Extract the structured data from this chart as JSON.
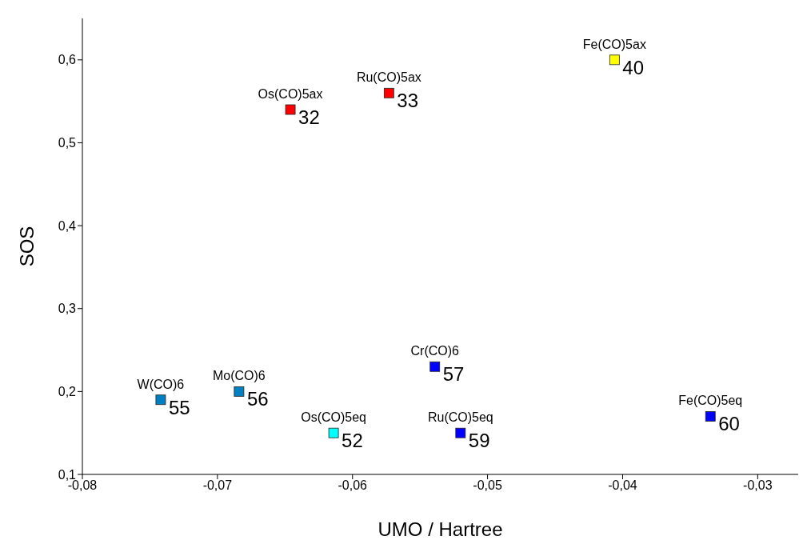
{
  "chart_data": {
    "type": "scatter",
    "xlabel": "UMO / Hartree",
    "ylabel": "SOS",
    "marker": "square",
    "grid": false,
    "x": [
      -0.0646,
      -0.0573,
      -0.0406,
      -0.0742,
      -0.0684,
      -0.0614,
      -0.0539,
      -0.052,
      -0.0335
    ],
    "values": [
      0.54,
      0.56,
      0.6,
      0.19,
      0.2,
      0.15,
      0.23,
      0.15,
      0.17
    ],
    "colors": [
      "#ff0000",
      "#ff0000",
      "#ffff00",
      "#0080c0",
      "#0080c0",
      "#00ffff",
      "#0000ff",
      "#0000ff",
      "#0000ff"
    ],
    "annotations": [
      {
        "text": "Os(CO)5ax",
        "x": -0.0646,
        "y": 0.54
      },
      {
        "text": "Ru(CO)5ax",
        "x": -0.0573,
        "y": 0.56
      },
      {
        "text": "Fe(CO)5ax",
        "x": -0.0406,
        "y": 0.6
      },
      {
        "text": "W(CO)6",
        "x": -0.0742,
        "y": 0.19
      },
      {
        "text": "Mo(CO)6",
        "x": -0.0684,
        "y": 0.2
      },
      {
        "text": "Os(CO)5eq",
        "x": -0.0614,
        "y": 0.15
      },
      {
        "text": "Cr(CO)6",
        "x": -0.0539,
        "y": 0.23
      },
      {
        "text": "Ru(CO)5eq",
        "x": -0.052,
        "y": 0.15
      },
      {
        "text": "Fe(CO)5eq",
        "x": -0.0335,
        "y": 0.17
      },
      {
        "text": "32",
        "x": -0.0646,
        "y": 0.54
      },
      {
        "text": "33",
        "x": -0.0573,
        "y": 0.56
      },
      {
        "text": "40",
        "x": -0.0406,
        "y": 0.6
      },
      {
        "text": "55",
        "x": -0.0742,
        "y": 0.19
      },
      {
        "text": "56",
        "x": -0.0684,
        "y": 0.2
      },
      {
        "text": "52",
        "x": -0.0614,
        "y": 0.15
      },
      {
        "text": "57",
        "x": -0.0539,
        "y": 0.23
      },
      {
        "text": "59",
        "x": -0.052,
        "y": 0.15
      },
      {
        "text": "60",
        "x": -0.0335,
        "y": 0.17
      }
    ],
    "xlim": [
      -0.08,
      -0.027
    ],
    "xticks": [
      {
        "value": -0.08,
        "label": "-0,08"
      },
      {
        "value": -0.07,
        "label": "-0,07"
      },
      {
        "value": -0.06,
        "label": "-0,06"
      },
      {
        "value": -0.05,
        "label": "-0,05"
      },
      {
        "value": -0.04,
        "label": "-0,04"
      },
      {
        "value": -0.03,
        "label": "-0,03"
      }
    ],
    "ylim": [
      0.1,
      0.65
    ],
    "yticks": [
      {
        "value": 0.1,
        "label": "0,1"
      },
      {
        "value": 0.2,
        "label": "0,2"
      },
      {
        "value": 0.3,
        "label": "0,3"
      },
      {
        "value": 0.4,
        "label": "0,4"
      },
      {
        "value": 0.5,
        "label": "0,5"
      },
      {
        "value": 0.6,
        "label": "0,6"
      }
    ]
  }
}
